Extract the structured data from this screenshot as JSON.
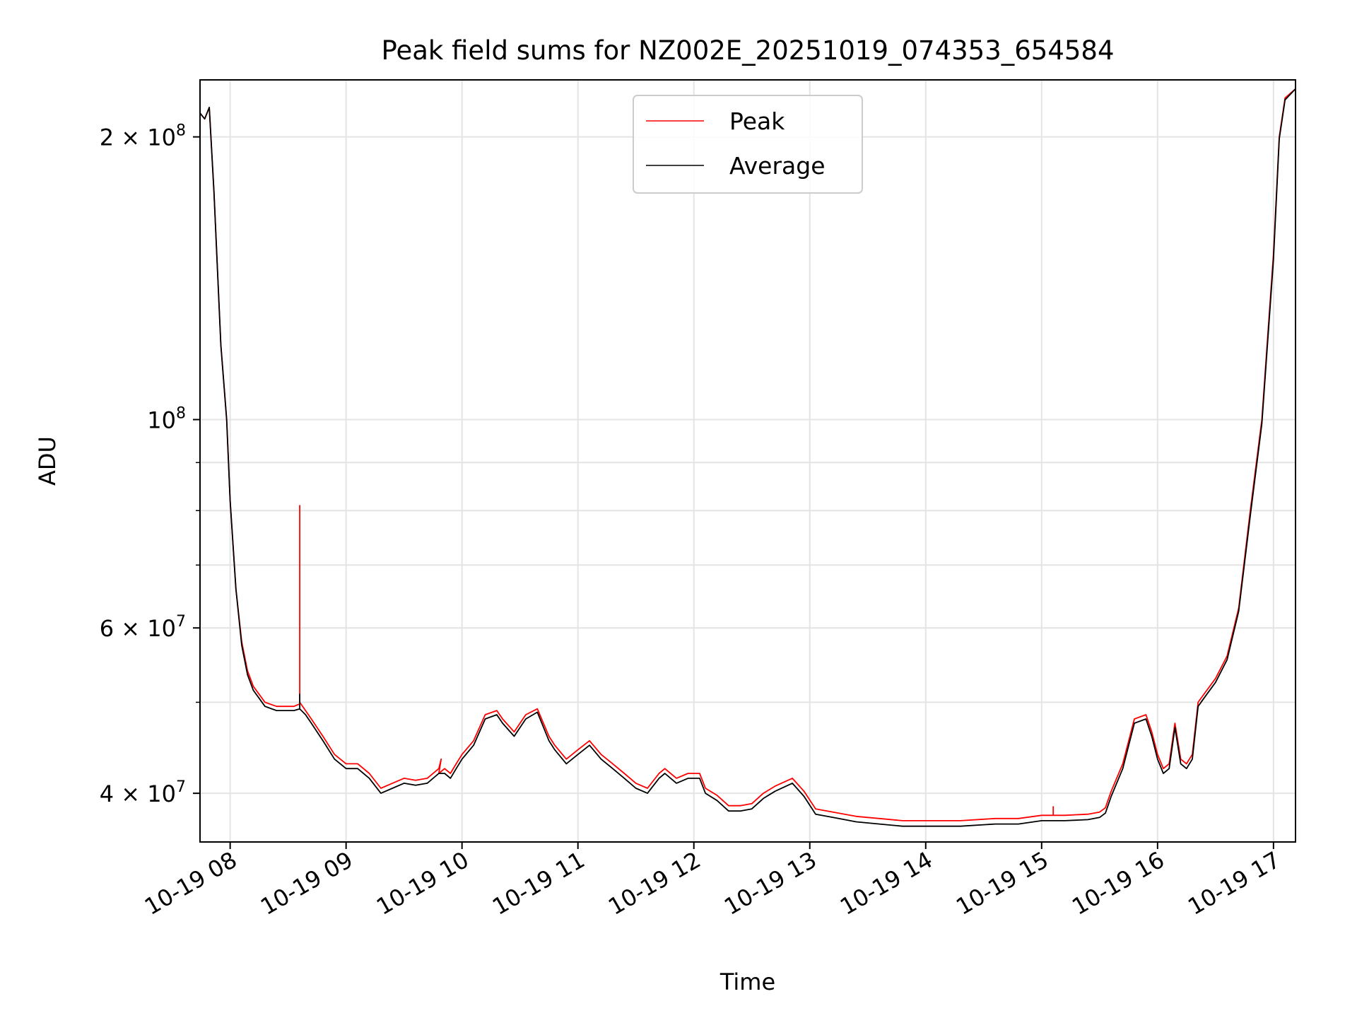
{
  "chart_data": {
    "type": "line",
    "title": "Peak field sums for NZ002E_20251019_074353_654584",
    "xlabel": "Time",
    "ylabel": "ADU",
    "yscale": "log",
    "grid": true,
    "legend_position": "upper-center",
    "x_unit": "hours",
    "xlim": [
      7.74,
      17.19
    ],
    "ylim": [
      35500000,
      230000000
    ],
    "x_ticks": [
      8,
      9,
      10,
      11,
      12,
      13,
      14,
      15,
      16,
      17
    ],
    "x_tick_labels": [
      "10-19 08",
      "10-19 09",
      "10-19 10",
      "10-19 11",
      "10-19 12",
      "10-19 13",
      "10-19 14",
      "10-19 15",
      "10-19 16",
      "10-19 17"
    ],
    "y_major_ticks": [
      40000000,
      60000000,
      100000000,
      200000000
    ],
    "y_tick_labels": [
      {
        "value": 40000000,
        "base": "4 × 10",
        "exp": "7"
      },
      {
        "value": 60000000,
        "base": "6 × 10",
        "exp": "7"
      },
      {
        "value": 100000000,
        "base": "10",
        "exp": "8"
      },
      {
        "value": 200000000,
        "base": "2 × 10",
        "exp": "8"
      }
    ],
    "y_minor_ticks": [
      50000000,
      70000000,
      80000000,
      90000000
    ],
    "series": [
      {
        "name": "Peak",
        "color": "#ff0000",
        "x": [
          7.74,
          7.78,
          7.82,
          7.86,
          7.92,
          7.97,
          8.0,
          8.05,
          8.1,
          8.15,
          8.2,
          8.3,
          8.4,
          8.5,
          8.55,
          8.6,
          8.6,
          8.6,
          8.65,
          8.7,
          8.8,
          8.9,
          9.0,
          9.1,
          9.2,
          9.3,
          9.4,
          9.5,
          9.6,
          9.7,
          9.8,
          9.82,
          9.8,
          9.85,
          9.9,
          9.95,
          10.0,
          10.1,
          10.2,
          10.3,
          10.35,
          10.45,
          10.55,
          10.65,
          10.75,
          10.8,
          10.9,
          11.0,
          11.1,
          11.2,
          11.3,
          11.4,
          11.5,
          11.6,
          11.7,
          11.75,
          11.85,
          11.95,
          12.05,
          12.1,
          12.2,
          12.3,
          12.4,
          12.5,
          12.6,
          12.7,
          12.85,
          12.95,
          13.05,
          13.2,
          13.4,
          13.6,
          13.8,
          14.0,
          14.3,
          14.6,
          14.8,
          15.0,
          15.1,
          15.1,
          15.1,
          15.2,
          15.4,
          15.5,
          15.55,
          15.6,
          15.7,
          15.8,
          15.9,
          15.95,
          16.0,
          16.05,
          16.1,
          16.15,
          16.2,
          16.25,
          16.3,
          16.35,
          16.4,
          16.5,
          16.6,
          16.7,
          16.8,
          16.9,
          17.0,
          17.05,
          17.1,
          17.19
        ],
        "y": [
          212000000,
          209000000,
          215000000,
          175000000,
          120000000,
          100000000,
          82000000,
          66000000,
          58000000,
          54000000,
          52000000,
          50000000,
          49500000,
          49500000,
          49500000,
          49800000,
          81000000,
          50000000,
          49000000,
          48000000,
          46000000,
          44000000,
          43000000,
          43000000,
          42000000,
          40500000,
          41000000,
          41500000,
          41300000,
          41500000,
          42500000,
          43500000,
          42000000,
          42500000,
          42000000,
          43000000,
          44000000,
          45500000,
          48500000,
          49000000,
          48000000,
          46500000,
          48500000,
          49200000,
          46000000,
          45000000,
          43500000,
          44500000,
          45500000,
          44000000,
          43000000,
          42000000,
          41000000,
          40500000,
          42000000,
          42500000,
          41500000,
          42000000,
          42000000,
          40500000,
          39800000,
          38800000,
          38800000,
          39000000,
          40000000,
          40700000,
          41500000,
          40200000,
          38500000,
          38200000,
          37800000,
          37600000,
          37400000,
          37400000,
          37400000,
          37600000,
          37600000,
          37900000,
          37900000,
          38700000,
          37900000,
          37900000,
          38000000,
          38200000,
          38600000,
          40200000,
          43000000,
          48000000,
          48500000,
          46500000,
          44000000,
          42500000,
          43000000,
          47500000,
          43500000,
          43000000,
          44000000,
          50000000,
          51000000,
          53000000,
          56000000,
          63000000,
          80000000,
          100000000,
          150000000,
          200000000,
          220000000,
          225000000
        ]
      },
      {
        "name": "Average",
        "color": "#000000",
        "x": [
          7.74,
          7.78,
          7.82,
          7.86,
          7.92,
          7.97,
          8.0,
          8.05,
          8.1,
          8.15,
          8.2,
          8.3,
          8.4,
          8.5,
          8.55,
          8.6,
          8.6,
          8.6,
          8.65,
          8.7,
          8.8,
          8.9,
          9.0,
          9.1,
          9.2,
          9.3,
          9.4,
          9.5,
          9.6,
          9.7,
          9.8,
          9.85,
          9.9,
          9.95,
          10.0,
          10.1,
          10.2,
          10.3,
          10.35,
          10.45,
          10.55,
          10.65,
          10.75,
          10.8,
          10.9,
          11.0,
          11.1,
          11.2,
          11.3,
          11.4,
          11.5,
          11.6,
          11.7,
          11.75,
          11.85,
          11.95,
          12.05,
          12.1,
          12.2,
          12.3,
          12.4,
          12.5,
          12.6,
          12.7,
          12.85,
          12.95,
          13.05,
          13.2,
          13.4,
          13.6,
          13.8,
          14.0,
          14.3,
          14.6,
          14.8,
          15.0,
          15.2,
          15.4,
          15.5,
          15.55,
          15.6,
          15.7,
          15.8,
          15.9,
          15.95,
          16.0,
          16.05,
          16.1,
          16.15,
          16.2,
          16.25,
          16.3,
          16.35,
          16.4,
          16.5,
          16.6,
          16.7,
          16.8,
          16.9,
          17.0,
          17.05,
          17.1,
          17.19
        ],
        "y": [
          212000000,
          209000000,
          215000000,
          175000000,
          120000000,
          100000000,
          82000000,
          66000000,
          57500000,
          53500000,
          51500000,
          49500000,
          49000000,
          49000000,
          49000000,
          49200000,
          51000000,
          49200000,
          48500000,
          47500000,
          45500000,
          43500000,
          42500000,
          42500000,
          41500000,
          40000000,
          40500000,
          41000000,
          40800000,
          41000000,
          42000000,
          42000000,
          41500000,
          42500000,
          43500000,
          45000000,
          48000000,
          48500000,
          47500000,
          46000000,
          48000000,
          48800000,
          45500000,
          44500000,
          43000000,
          44000000,
          45000000,
          43500000,
          42500000,
          41500000,
          40500000,
          40000000,
          41500000,
          42000000,
          41000000,
          41500000,
          41500000,
          40000000,
          39300000,
          38300000,
          38300000,
          38500000,
          39500000,
          40200000,
          41000000,
          39700000,
          38000000,
          37700000,
          37300000,
          37100000,
          36900000,
          36900000,
          36900000,
          37100000,
          37100000,
          37400000,
          37400000,
          37500000,
          37700000,
          38100000,
          39700000,
          42500000,
          47500000,
          48000000,
          46000000,
          43500000,
          42000000,
          42500000,
          47000000,
          43000000,
          42500000,
          43500000,
          49500000,
          50500000,
          52500000,
          55500000,
          62500000,
          79000000,
          99000000,
          148000000,
          199000000,
          219000000,
          225000000
        ]
      }
    ]
  }
}
